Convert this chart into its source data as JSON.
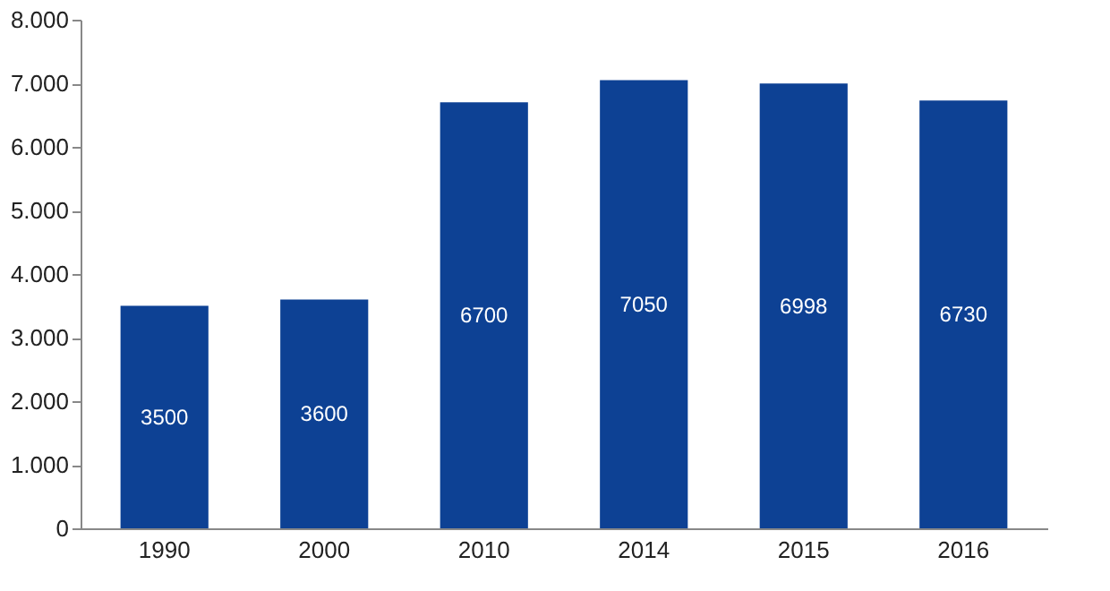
{
  "chart_data": {
    "type": "bar",
    "categories": [
      "1990",
      "2000",
      "2010",
      "2014",
      "2015",
      "2016"
    ],
    "values": [
      3500,
      3600,
      6700,
      7050,
      6998,
      6730
    ],
    "color": "#0d4194",
    "ylim": [
      0,
      8000
    ],
    "yticks": [
      0,
      {
        "value": 1000,
        "label": "1.000"
      },
      {
        "value": 2000,
        "label": "2.000"
      },
      {
        "value": 3000,
        "label": "3.000"
      },
      {
        "value": 4000,
        "label": "4.000"
      },
      {
        "value": 5000,
        "label": "5.000"
      },
      {
        "value": 6000,
        "label": "6.000"
      },
      {
        "value": 7000,
        "label": "7.000"
      },
      {
        "value": 8000,
        "label": "8.000"
      }
    ],
    "data_labels": true,
    "grid": false
  }
}
